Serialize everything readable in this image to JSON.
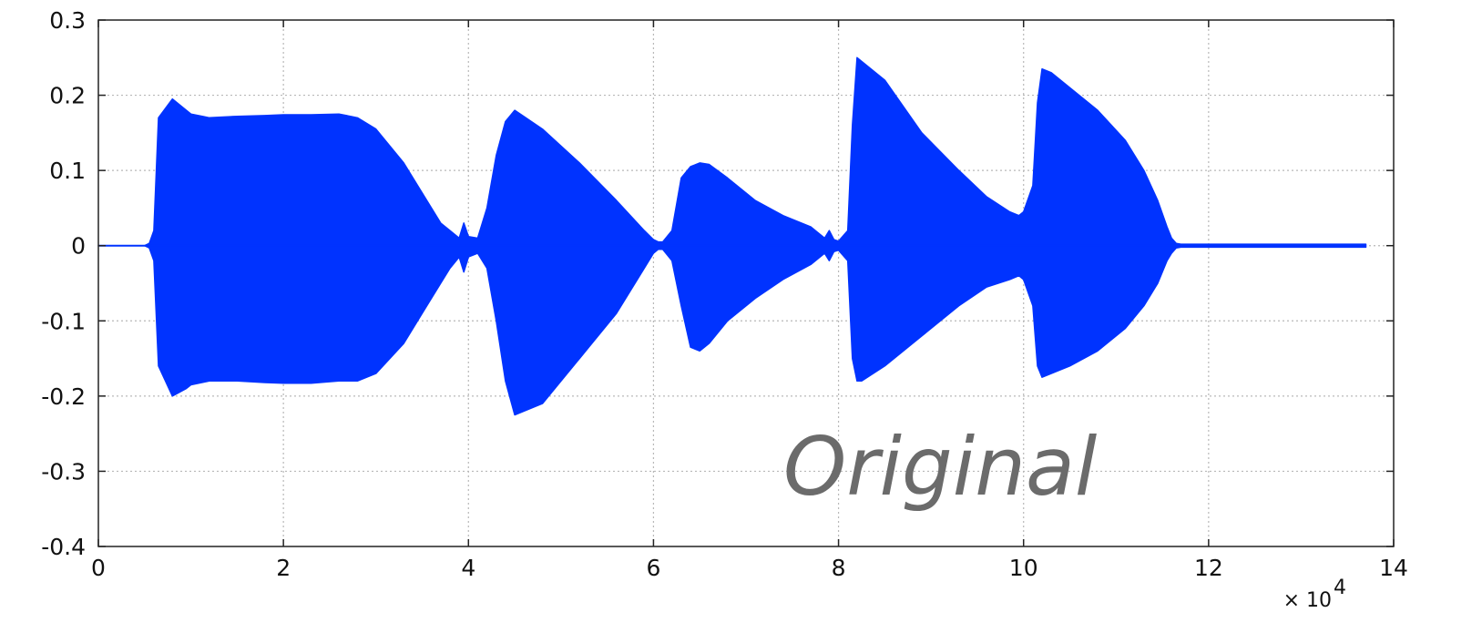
{
  "chart_data": {
    "type": "area",
    "title": "",
    "xlabel": "",
    "ylabel": "",
    "xlim": [
      0,
      14
    ],
    "ylim": [
      -0.4,
      0.3
    ],
    "x_multiplier_label": "× 10",
    "x_multiplier_exponent": "4",
    "x_ticks": [
      0,
      2,
      4,
      6,
      8,
      10,
      12,
      14
    ],
    "x_tick_labels": [
      "0",
      "2",
      "4",
      "6",
      "8",
      "10",
      "12",
      "14"
    ],
    "y_ticks": [
      0.3,
      0.2,
      0.1,
      0,
      -0.1,
      -0.2,
      -0.3,
      -0.4
    ],
    "y_tick_labels": [
      "0.3",
      "0.2",
      "0.1",
      "0",
      "-0.1",
      "-0.2",
      "-0.3",
      "-0.4"
    ],
    "grid": true,
    "annotation": "Original",
    "series": [
      {
        "color": "#0033ff",
        "x": [
          0,
          0.5,
          0.55,
          0.6,
          0.65,
          0.8,
          0.95,
          1.0,
          1.2,
          1.5,
          1.8,
          2.0,
          2.3,
          2.6,
          2.8,
          3.0,
          3.3,
          3.5,
          3.7,
          3.8,
          3.9,
          3.95,
          4.0,
          4.1,
          4.2,
          4.3,
          4.4,
          4.5,
          4.8,
          5.2,
          5.6,
          5.9,
          6.0,
          6.05,
          6.1,
          6.2,
          6.3,
          6.4,
          6.5,
          6.6,
          6.8,
          7.1,
          7.4,
          7.7,
          7.85,
          7.9,
          7.95,
          8.0,
          8.1,
          8.15,
          8.2,
          8.25,
          8.5,
          8.9,
          9.3,
          9.6,
          9.85,
          9.95,
          10.0,
          10.1,
          10.15,
          10.2,
          10.3,
          10.5,
          10.8,
          11.1,
          11.3,
          11.45,
          11.55,
          11.6,
          11.65,
          11.7,
          11.8,
          12.0,
          13.0,
          13.7
        ],
        "upper": [
          0,
          0,
          0.003,
          0.02,
          0.17,
          0.195,
          0.18,
          0.175,
          0.17,
          0.172,
          0.173,
          0.174,
          0.174,
          0.175,
          0.17,
          0.155,
          0.11,
          0.07,
          0.03,
          0.02,
          0.01,
          0.03,
          0.012,
          0.01,
          0.05,
          0.12,
          0.165,
          0.18,
          0.155,
          0.11,
          0.06,
          0.02,
          0.008,
          0.005,
          0.005,
          0.02,
          0.09,
          0.105,
          0.11,
          0.108,
          0.09,
          0.06,
          0.04,
          0.025,
          0.01,
          0.02,
          0.008,
          0.006,
          0.02,
          0.16,
          0.25,
          0.245,
          0.22,
          0.15,
          0.1,
          0.065,
          0.045,
          0.04,
          0.045,
          0.08,
          0.19,
          0.235,
          0.23,
          0.21,
          0.18,
          0.14,
          0.1,
          0.06,
          0.025,
          0.01,
          0.003,
          0.002,
          0.002,
          0.002,
          0.002,
          0.002
        ],
        "lower": [
          0,
          0,
          -0.003,
          -0.02,
          -0.16,
          -0.2,
          -0.19,
          -0.185,
          -0.18,
          -0.18,
          -0.182,
          -0.183,
          -0.183,
          -0.18,
          -0.18,
          -0.17,
          -0.13,
          -0.09,
          -0.05,
          -0.03,
          -0.015,
          -0.035,
          -0.015,
          -0.01,
          -0.03,
          -0.1,
          -0.18,
          -0.225,
          -0.21,
          -0.15,
          -0.09,
          -0.03,
          -0.01,
          -0.005,
          -0.005,
          -0.02,
          -0.08,
          -0.135,
          -0.14,
          -0.13,
          -0.1,
          -0.07,
          -0.045,
          -0.025,
          -0.01,
          -0.02,
          -0.008,
          -0.006,
          -0.02,
          -0.15,
          -0.18,
          -0.18,
          -0.16,
          -0.12,
          -0.08,
          -0.055,
          -0.045,
          -0.04,
          -0.045,
          -0.08,
          -0.16,
          -0.175,
          -0.17,
          -0.16,
          -0.14,
          -0.11,
          -0.08,
          -0.05,
          -0.02,
          -0.01,
          -0.003,
          -0.002,
          -0.002,
          -0.002,
          -0.002,
          -0.002
        ]
      }
    ]
  }
}
